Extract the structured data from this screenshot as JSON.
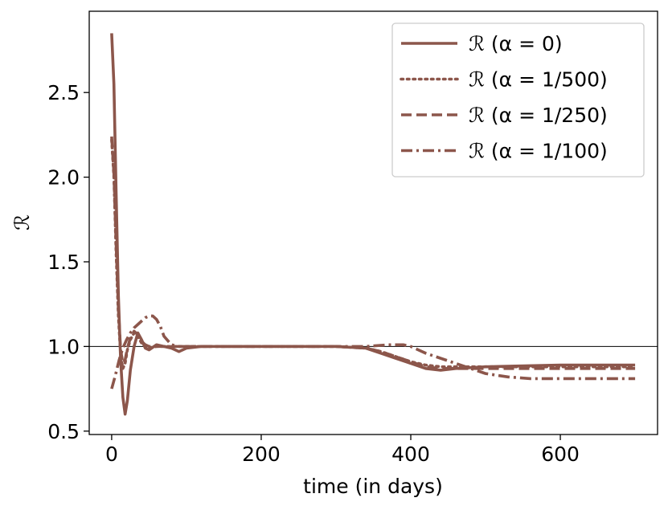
{
  "chart_data": {
    "type": "line",
    "xlabel": "time (in days)",
    "ylabel": "ℛ",
    "xlim": [
      -30,
      730
    ],
    "ylim": [
      0.48,
      2.98
    ],
    "xticks": [
      0,
      200,
      400,
      600
    ],
    "yticks": [
      0.5,
      1.0,
      1.5,
      2.0,
      2.5
    ],
    "xtick_labels": [
      "0",
      "200",
      "400",
      "600"
    ],
    "ytick_labels": [
      "0.5",
      "1.0",
      "1.5",
      "2.0",
      "2.5"
    ],
    "reference_line": 1.0,
    "legend_position": "top-right",
    "grid": false,
    "color": "#8c564b",
    "series": [
      {
        "name": "ℛ (α = 0)",
        "style": "solid",
        "x": [
          0,
          3,
          6,
          9,
          12,
          15,
          18,
          21,
          25,
          30,
          35,
          40,
          45,
          50,
          60,
          70,
          80,
          90,
          100,
          120,
          150,
          200,
          250,
          300,
          340,
          360,
          380,
          400,
          420,
          440,
          460,
          500,
          600,
          700
        ],
        "y": [
          2.85,
          2.55,
          1.9,
          1.3,
          0.92,
          0.7,
          0.6,
          0.68,
          0.86,
          1.0,
          1.08,
          1.04,
          0.99,
          0.98,
          1.01,
          1.0,
          0.99,
          0.97,
          0.99,
          1.0,
          1.0,
          1.0,
          1.0,
          1.0,
          0.99,
          0.96,
          0.93,
          0.9,
          0.87,
          0.86,
          0.87,
          0.88,
          0.89,
          0.89
        ]
      },
      {
        "name": "ℛ (α = 1/500)",
        "style": "dotted",
        "x": [
          0,
          3,
          6,
          9,
          12,
          15,
          18,
          21,
          25,
          30,
          35,
          40,
          45,
          50,
          60,
          70,
          80,
          90,
          100,
          120,
          150,
          200,
          250,
          300,
          340,
          360,
          380,
          400,
          420,
          440,
          460,
          500,
          600,
          700
        ],
        "y": [
          2.22,
          2.0,
          1.55,
          1.18,
          0.95,
          0.87,
          0.9,
          0.98,
          1.04,
          1.08,
          1.06,
          1.02,
          1.0,
          0.99,
          1.0,
          1.0,
          1.0,
          1.0,
          1.0,
          1.0,
          1.0,
          1.0,
          1.0,
          1.0,
          0.99,
          0.97,
          0.94,
          0.91,
          0.89,
          0.88,
          0.88,
          0.88,
          0.88,
          0.88
        ]
      },
      {
        "name": "ℛ (α = 1/250)",
        "style": "dashed",
        "x": [
          0,
          3,
          6,
          9,
          12,
          15,
          18,
          21,
          25,
          30,
          35,
          40,
          45,
          50,
          60,
          70,
          80,
          90,
          100,
          120,
          150,
          200,
          250,
          300,
          340,
          360,
          380,
          400,
          420,
          440,
          460,
          500,
          600,
          700
        ],
        "y": [
          2.24,
          2.02,
          1.6,
          1.22,
          0.98,
          0.9,
          0.92,
          0.99,
          1.05,
          1.09,
          1.07,
          1.03,
          1.01,
          1.0,
          1.0,
          1.0,
          1.0,
          1.0,
          1.0,
          1.0,
          1.0,
          1.0,
          1.0,
          1.0,
          0.99,
          0.97,
          0.94,
          0.91,
          0.88,
          0.87,
          0.87,
          0.87,
          0.87,
          0.87
        ]
      },
      {
        "name": "ℛ (α = 1/100)",
        "style": "dashdot",
        "x": [
          0,
          5,
          10,
          15,
          20,
          25,
          30,
          35,
          40,
          45,
          50,
          55,
          60,
          65,
          70,
          80,
          90,
          100,
          120,
          150,
          200,
          250,
          300,
          340,
          370,
          390,
          400,
          410,
          420,
          440,
          460,
          480,
          500,
          530,
          560,
          600,
          650,
          700
        ],
        "y": [
          0.75,
          0.83,
          0.92,
          0.99,
          1.04,
          1.08,
          1.11,
          1.13,
          1.15,
          1.17,
          1.18,
          1.18,
          1.16,
          1.12,
          1.06,
          1.01,
          1.0,
          1.0,
          1.0,
          1.0,
          1.0,
          1.0,
          1.0,
          1.0,
          1.01,
          1.01,
          1.0,
          0.98,
          0.96,
          0.93,
          0.9,
          0.87,
          0.84,
          0.82,
          0.81,
          0.81,
          0.81,
          0.81
        ]
      }
    ]
  }
}
